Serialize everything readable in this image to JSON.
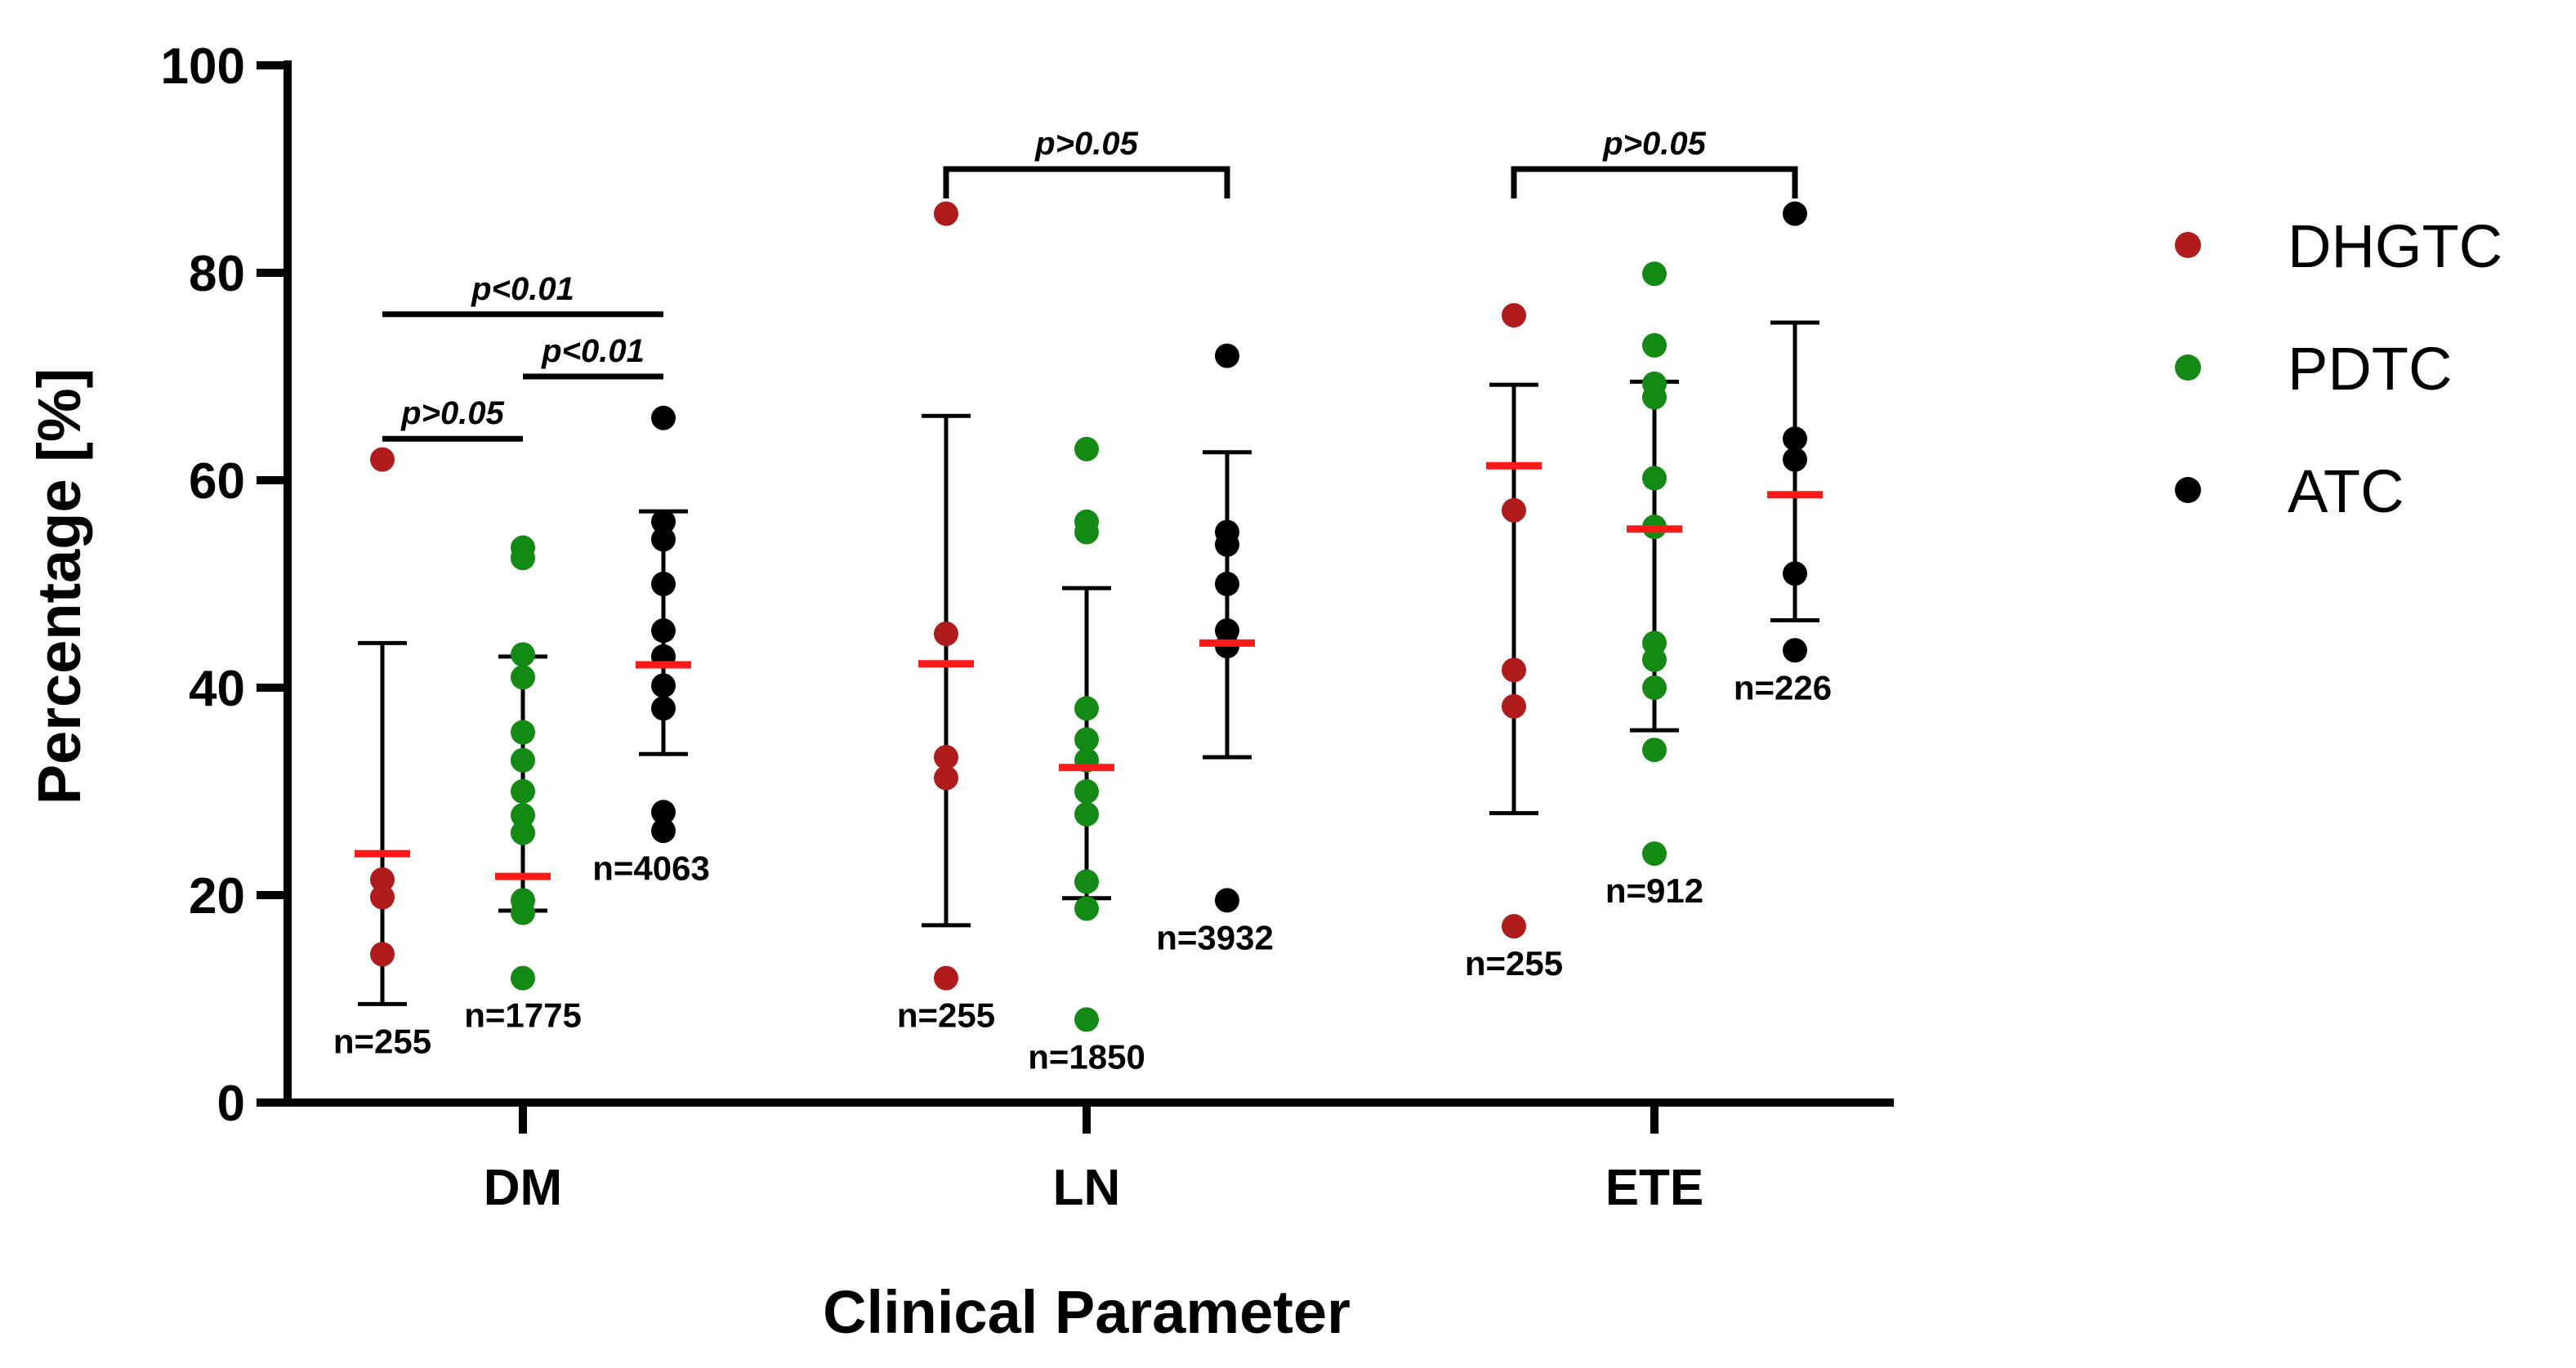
{
  "chart_data": {
    "type": "scatter",
    "subtype": "dot-plot-with-mean-and-sd",
    "title": "",
    "xlabel": "Clinical Parameter",
    "ylabel": "Percentage [%]",
    "ylim": [
      0,
      100
    ],
    "yticks": [
      0,
      20,
      40,
      60,
      80,
      100
    ],
    "categories": [
      "DM",
      "LN",
      "ETE"
    ],
    "legend": {
      "placement": "right",
      "entries": [
        {
          "name": "DHGTC",
          "color": "#b01c1c"
        },
        {
          "name": "PDTC",
          "color": "#138a13"
        },
        {
          "name": "ATC",
          "color": "#000000"
        }
      ]
    },
    "mean_color": "#ff1a1a",
    "series": [
      {
        "name": "DHGTC",
        "groups": [
          {
            "category": "DM",
            "points": [
              62,
              21.5,
              19.8,
              14.3
            ],
            "mean": 24,
            "sd_low": 9.5,
            "sd_high": 44.3,
            "n_label": "n=255"
          },
          {
            "category": "LN",
            "points": [
              85.7,
              45.2,
              33.3,
              31.3,
              12
            ],
            "mean": 42.3,
            "sd_low": 17.1,
            "sd_high": 66.2,
            "n_label": "n=255"
          },
          {
            "category": "ETE",
            "points": [
              75.9,
              57.1,
              41.7,
              38.2,
              17
            ],
            "mean": 61.4,
            "sd_low": 27.9,
            "sd_high": 69.2,
            "n_label": "n=255"
          }
        ]
      },
      {
        "name": "PDTC",
        "groups": [
          {
            "category": "DM",
            "points": [
              53.5,
              52.5,
              43.2,
              41,
              35.7,
              33,
              30,
              27.7,
              26,
              19.5,
              18.3,
              12
            ],
            "mean": 21.8,
            "sd_low": 18.5,
            "sd_high": 43,
            "n_label": "n=1775"
          },
          {
            "category": "LN",
            "points": [
              63,
              56,
              55,
              38,
              35,
              33,
              30,
              27.8,
              21.3,
              18.7,
              8
            ],
            "mean": 32.3,
            "sd_low": 19.7,
            "sd_high": 49.6,
            "n_label": "n=1850"
          },
          {
            "category": "ETE",
            "points": [
              79.9,
              73,
              69.3,
              68,
              60.2,
              55.5,
              44.3,
              42.7,
              40,
              34,
              24
            ],
            "mean": 55.3,
            "sd_low": 35.9,
            "sd_high": 69.5,
            "n_label": "n=912"
          }
        ]
      },
      {
        "name": "ATC",
        "groups": [
          {
            "category": "DM",
            "points": [
              66,
              56,
              54.3,
              50,
              45.5,
              43,
              40.2,
              38,
              28,
              26.2
            ],
            "mean": 42.2,
            "sd_low": 33.6,
            "sd_high": 57,
            "n_label": "n=4063"
          },
          {
            "category": "LN",
            "points": [
              72,
              55,
              53.8,
              50,
              45.5,
              44,
              19.5
            ],
            "mean": 44.3,
            "sd_low": 33.3,
            "sd_high": 62.7,
            "n_label": "n=3932"
          },
          {
            "category": "ETE",
            "points": [
              85.7,
              64,
              62,
              51,
              43.6
            ],
            "mean": 58.6,
            "sd_low": 46.5,
            "sd_high": 75.2,
            "n_label": "n=226"
          }
        ]
      }
    ],
    "annotations": [
      {
        "category": "DM",
        "from": "DHGTC",
        "to": "ATC",
        "text": "p<0.01",
        "level": 76
      },
      {
        "category": "DM",
        "from": "PDTC",
        "to": "ATC",
        "text": "p<0.01",
        "level": 70
      },
      {
        "category": "DM",
        "from": "DHGTC",
        "to": "PDTC",
        "text": "p>0.05",
        "level": 64
      },
      {
        "category": "LN",
        "from": "DHGTC",
        "to": "ATC",
        "text": "p>0.05",
        "level": 90
      },
      {
        "category": "ETE",
        "from": "DHGTC",
        "to": "ATC",
        "text": "p>0.05",
        "level": 90
      }
    ]
  }
}
